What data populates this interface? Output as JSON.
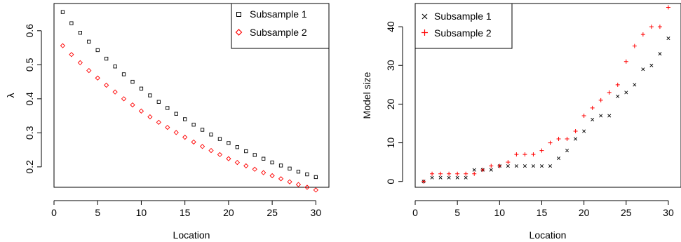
{
  "chart_data": [
    {
      "type": "scatter",
      "panel": "left",
      "xlabel": "Location",
      "ylabel": "λ",
      "xlim": [
        0,
        31.5
      ],
      "ylim": [
        0.14,
        0.68
      ],
      "xticks": [
        0,
        5,
        10,
        15,
        20,
        25,
        30
      ],
      "yticks": [
        0.2,
        0.3,
        0.4,
        0.5,
        0.6
      ],
      "ytick_labels": [
        "0.2",
        "0.3",
        "0.4",
        "0.5",
        "0.6"
      ],
      "grid": false,
      "legend_position": "top-right",
      "x": [
        1,
        2,
        3,
        4,
        5,
        6,
        7,
        8,
        9,
        10,
        11,
        12,
        13,
        14,
        15,
        16,
        17,
        18,
        19,
        20,
        21,
        22,
        23,
        24,
        25,
        26,
        27,
        28,
        29,
        30
      ],
      "series": [
        {
          "name": "Subsample 1",
          "marker": "square",
          "color": "#000000",
          "values": [
            0.655,
            0.622,
            0.594,
            0.568,
            0.543,
            0.518,
            0.495,
            0.472,
            0.45,
            0.43,
            0.41,
            0.391,
            0.373,
            0.356,
            0.34,
            0.324,
            0.309,
            0.295,
            0.282,
            0.27,
            0.258,
            0.246,
            0.235,
            0.224,
            0.213,
            0.204,
            0.195,
            0.186,
            0.178,
            0.17
          ]
        },
        {
          "name": "Subsample 2",
          "marker": "diamond",
          "color": "#ff0000",
          "values": [
            0.556,
            0.53,
            0.506,
            0.483,
            0.461,
            0.44,
            0.42,
            0.4,
            0.382,
            0.364,
            0.347,
            0.331,
            0.316,
            0.301,
            0.287,
            0.273,
            0.26,
            0.248,
            0.236,
            0.224,
            0.213,
            0.203,
            0.193,
            0.183,
            0.174,
            0.165,
            0.156,
            0.148,
            0.14,
            0.132
          ]
        }
      ]
    },
    {
      "type": "scatter",
      "panel": "right",
      "xlabel": "Location",
      "ylabel": "Model size",
      "xlim": [
        0,
        31.5
      ],
      "ylim": [
        -1.5,
        46
      ],
      "xticks": [
        0,
        5,
        10,
        15,
        20,
        25,
        30
      ],
      "yticks": [
        0,
        10,
        20,
        30,
        40
      ],
      "grid": false,
      "legend_position": "top-left",
      "x": [
        1,
        2,
        3,
        4,
        5,
        6,
        7,
        8,
        9,
        10,
        11,
        12,
        13,
        14,
        15,
        16,
        17,
        18,
        19,
        20,
        21,
        22,
        23,
        24,
        25,
        26,
        27,
        28,
        29,
        30
      ],
      "series": [
        {
          "name": "Subsample 1",
          "marker": "x",
          "color": "#000000",
          "values": [
            0,
            1,
            1,
            1,
            1,
            1,
            3,
            3,
            3,
            4,
            4,
            4,
            4,
            4,
            4,
            4,
            6,
            8,
            11,
            13,
            16,
            17,
            17,
            22,
            23,
            25,
            29,
            30,
            33,
            37
          ]
        },
        {
          "name": "Subsample 2",
          "marker": "plus",
          "color": "#ff0000",
          "values": [
            0,
            2,
            2,
            2,
            2,
            2,
            2,
            3,
            4,
            4,
            5,
            7,
            7,
            7,
            8,
            10,
            11,
            11,
            13,
            17,
            19,
            21,
            23,
            25,
            31,
            35,
            38,
            40,
            40,
            45
          ]
        }
      ]
    }
  ]
}
